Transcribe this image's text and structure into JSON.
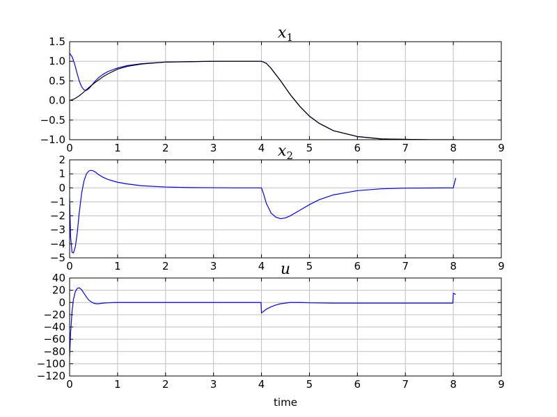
{
  "figure": {
    "xlabel": "time"
  },
  "chart_data": [
    {
      "type": "line",
      "title": "x",
      "title_sub": "1",
      "xlabel": "",
      "ylabel": "",
      "xlim": [
        0,
        9
      ],
      "ylim": [
        -1.0,
        1.5
      ],
      "xticks": [
        0,
        1,
        2,
        3,
        4,
        5,
        6,
        7,
        8,
        9
      ],
      "xtick_labels": [
        "0",
        "1",
        "2",
        "3",
        "4",
        "5",
        "6",
        "7",
        "8",
        "9"
      ],
      "yticks": [
        -1.0,
        -0.5,
        0.0,
        0.5,
        1.0,
        1.5
      ],
      "ytick_labels": [
        "−1.0",
        "−0.5",
        "0.0",
        "0.5",
        "1.0",
        "1.5"
      ],
      "grid": true,
      "series": [
        {
          "color": "#0000ff",
          "x": [
            0,
            0.05,
            0.1,
            0.15,
            0.2,
            0.25,
            0.3,
            0.35,
            0.4,
            0.45,
            0.5,
            0.6,
            0.7,
            0.8,
            1.0,
            1.2,
            1.5,
            2.0,
            2.5,
            3.0,
            3.5,
            4.0,
            4.1,
            4.2,
            4.4,
            4.6,
            4.8,
            5.0,
            5.2,
            5.5,
            6.0,
            6.5,
            7.0,
            7.5,
            8.0,
            8.05
          ],
          "y": [
            1.2,
            1.12,
            0.95,
            0.72,
            0.5,
            0.35,
            0.27,
            0.26,
            0.3,
            0.37,
            0.45,
            0.58,
            0.67,
            0.74,
            0.83,
            0.89,
            0.94,
            0.98,
            0.99,
            1.0,
            1.0,
            1.0,
            0.95,
            0.82,
            0.5,
            0.15,
            -0.15,
            -0.4,
            -0.58,
            -0.77,
            -0.92,
            -0.98,
            -0.99,
            -1.0,
            -1.0,
            -1.0
          ]
        },
        {
          "color": "#000000",
          "x": [
            0,
            0.1,
            0.2,
            0.3,
            0.4,
            0.5,
            0.6,
            0.7,
            0.8,
            1.0,
            1.2,
            1.5,
            2.0,
            2.5,
            3.0,
            3.5,
            4.0,
            4.1,
            4.2,
            4.4,
            4.6,
            4.8,
            5.0,
            5.2,
            5.5,
            6.0,
            6.5,
            7.0,
            7.5,
            8.0,
            8.05
          ],
          "y": [
            0.0,
            0.04,
            0.12,
            0.22,
            0.33,
            0.43,
            0.52,
            0.61,
            0.68,
            0.8,
            0.87,
            0.93,
            0.98,
            0.99,
            1.0,
            1.0,
            1.0,
            0.95,
            0.82,
            0.5,
            0.15,
            -0.15,
            -0.4,
            -0.58,
            -0.77,
            -0.92,
            -0.98,
            -0.99,
            -1.0,
            -1.0,
            -1.0
          ]
        }
      ]
    },
    {
      "type": "line",
      "title": "x",
      "title_sub": "2",
      "xlabel": "",
      "ylabel": "",
      "xlim": [
        0,
        9
      ],
      "ylim": [
        -5,
        2
      ],
      "xticks": [
        0,
        1,
        2,
        3,
        4,
        5,
        6,
        7,
        8,
        9
      ],
      "xtick_labels": [
        "0",
        "1",
        "2",
        "3",
        "4",
        "5",
        "6",
        "7",
        "8",
        "9"
      ],
      "yticks": [
        -5,
        -4,
        -3,
        -2,
        -1,
        0,
        1,
        2
      ],
      "ytick_labels": [
        "−5",
        "−4",
        "−3",
        "−2",
        "−1",
        "0",
        "1",
        "2"
      ],
      "grid": true,
      "series": [
        {
          "color": "#0000ff",
          "x": [
            0,
            0.02,
            0.05,
            0.08,
            0.12,
            0.16,
            0.2,
            0.25,
            0.3,
            0.35,
            0.4,
            0.45,
            0.5,
            0.55,
            0.6,
            0.7,
            0.8,
            1.0,
            1.2,
            1.5,
            2.0,
            2.5,
            3.0,
            3.5,
            4.0,
            4.05,
            4.1,
            4.2,
            4.3,
            4.4,
            4.5,
            4.6,
            4.8,
            5.0,
            5.2,
            5.5,
            6.0,
            6.5,
            7.0,
            7.5,
            8.0,
            8.02,
            8.05
          ],
          "y": [
            -0.7,
            -3.5,
            -4.6,
            -4.65,
            -4.2,
            -3.2,
            -1.8,
            -0.4,
            0.5,
            1.0,
            1.2,
            1.25,
            1.2,
            1.1,
            0.95,
            0.75,
            0.6,
            0.4,
            0.28,
            0.15,
            0.06,
            0.02,
            0.01,
            0.0,
            0.0,
            -0.5,
            -1.1,
            -1.8,
            -2.1,
            -2.2,
            -2.15,
            -2.0,
            -1.6,
            -1.2,
            -0.85,
            -0.5,
            -0.2,
            -0.07,
            -0.02,
            -0.01,
            0.0,
            0.3,
            0.7
          ]
        }
      ]
    },
    {
      "type": "line",
      "title": "u",
      "title_sub": "",
      "xlabel": "time",
      "ylabel": "",
      "xlim": [
        0,
        9
      ],
      "ylim": [
        -120,
        40
      ],
      "xticks": [
        0,
        1,
        2,
        3,
        4,
        5,
        6,
        7,
        8,
        9
      ],
      "xtick_labels": [
        "0",
        "1",
        "2",
        "3",
        "4",
        "5",
        "6",
        "7",
        "8",
        "9"
      ],
      "yticks": [
        -120,
        -100,
        -80,
        -60,
        -40,
        -20,
        0,
        20,
        40
      ],
      "ytick_labels": [
        "−120",
        "−100",
        "−80",
        "−60",
        "−40",
        "−20",
        "0",
        "20",
        "40"
      ],
      "grid": true,
      "series": [
        {
          "color": "#0000ff",
          "x": [
            0,
            0.02,
            0.05,
            0.08,
            0.12,
            0.16,
            0.2,
            0.25,
            0.3,
            0.35,
            0.4,
            0.45,
            0.5,
            0.55,
            0.6,
            0.7,
            0.8,
            1.0,
            1.5,
            2.0,
            3.0,
            3.5,
            3.99,
            4.0,
            4.05,
            4.1,
            4.2,
            4.3,
            4.4,
            4.5,
            4.6,
            4.8,
            5.0,
            5.5,
            6.0,
            7.0,
            7.99,
            8.0,
            8.03,
            8.05
          ],
          "y": [
            -88,
            -50,
            -15,
            5,
            18,
            23,
            24,
            21,
            15,
            9,
            4,
            1,
            -1,
            -2,
            -2,
            -1,
            -0.5,
            0,
            0,
            0,
            0,
            0,
            0,
            -17,
            -14,
            -11,
            -7,
            -4,
            -2,
            -1,
            0,
            0,
            -0.5,
            -1,
            -1,
            -1,
            -1,
            15,
            14,
            13
          ]
        }
      ]
    }
  ]
}
